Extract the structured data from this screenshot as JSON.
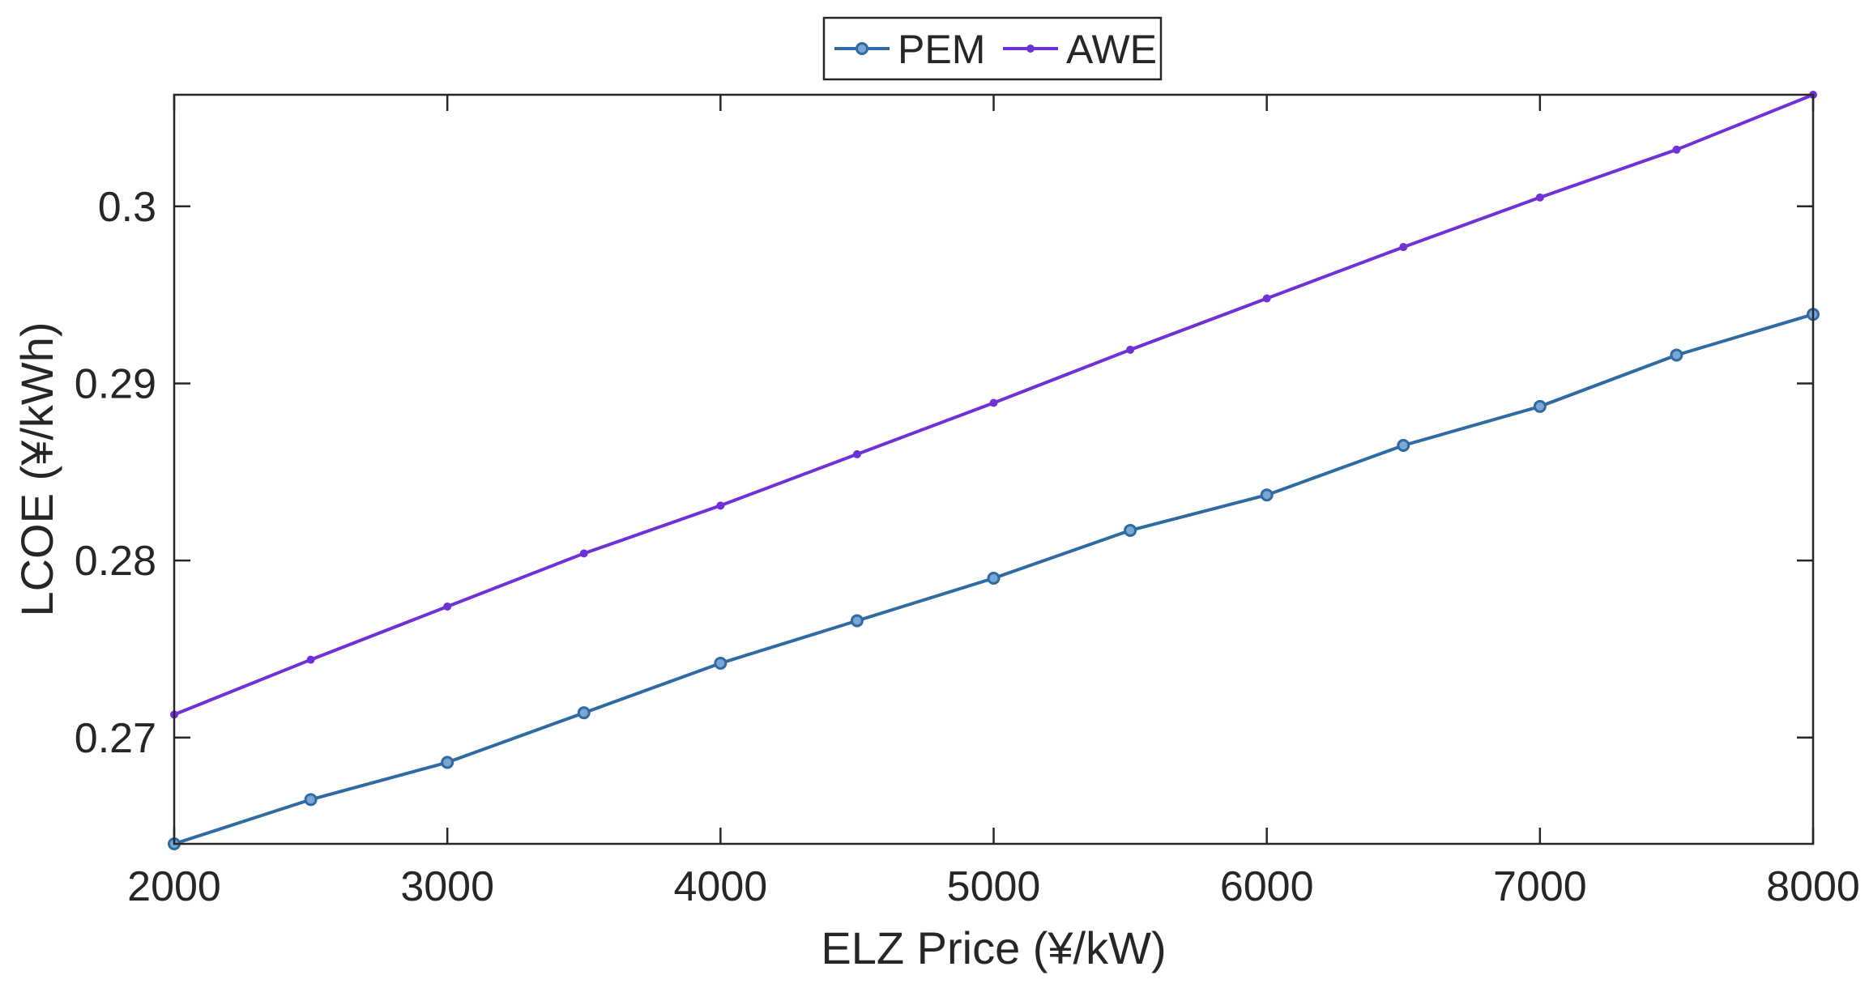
{
  "chart_data": {
    "type": "line",
    "title": "",
    "xlabel": "ELZ Price (¥/kW)",
    "ylabel": "LCOE (¥/kWh)",
    "xlim": [
      2000,
      8000
    ],
    "ylim": [
      0.264,
      0.3063
    ],
    "xticks": [
      2000,
      3000,
      4000,
      5000,
      6000,
      7000,
      8000
    ],
    "xtick_labels": [
      "2000",
      "3000",
      "4000",
      "5000",
      "6000",
      "7000",
      "8000"
    ],
    "yticks": [
      0.27,
      0.28,
      0.29,
      0.3
    ],
    "ytick_labels": [
      "0.27",
      "0.28",
      "0.29",
      "0.3"
    ],
    "grid": false,
    "legend_position": "top-center",
    "x": [
      2000,
      2500,
      3000,
      3500,
      4000,
      4500,
      5000,
      5500,
      6000,
      6500,
      7000,
      7500,
      8000
    ],
    "series": [
      {
        "name": "PEM",
        "color": "#2f6aa3",
        "marker": "circle",
        "values": [
          0.264,
          0.2665,
          0.2686,
          0.2714,
          0.2742,
          0.2766,
          0.279,
          0.2817,
          0.2837,
          0.2865,
          0.2887,
          0.2916,
          0.2939
        ]
      },
      {
        "name": "AWE",
        "color": "#7030d8",
        "marker": "dot",
        "values": [
          0.2713,
          0.2744,
          0.2774,
          0.2804,
          0.2831,
          0.286,
          0.2889,
          0.2919,
          0.2948,
          0.2977,
          0.3005,
          0.3032,
          0.3063
        ]
      }
    ]
  }
}
